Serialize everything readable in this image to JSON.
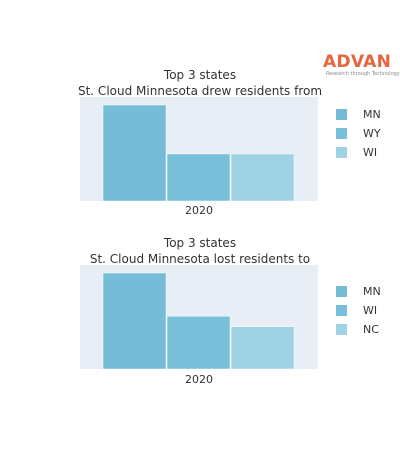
{
  "logo": {
    "word": "ADVAN",
    "tagline": "Research through Technology"
  },
  "chart_data": [
    {
      "type": "bar",
      "title": "Top 3 states",
      "subtitle": "St. Cloud Minnesota drew residents from",
      "categories": [
        "2020"
      ],
      "series": [
        {
          "name": "MN",
          "values": [
            100
          ],
          "color": "#75bcd6"
        },
        {
          "name": "WY",
          "values": [
            49
          ],
          "color": "#78bfd9"
        },
        {
          "name": "WI",
          "values": [
            49
          ],
          "color": "#9ed2e4"
        }
      ],
      "ylim": [
        0,
        100
      ],
      "xlabel": "",
      "ylabel": "",
      "grid": false,
      "legend_position": "right",
      "plot_background": "#e8eef6"
    },
    {
      "type": "bar",
      "title": "Top 3 states",
      "subtitle": "St. Cloud Minnesota lost residents to",
      "categories": [
        "2020"
      ],
      "series": [
        {
          "name": "MN",
          "values": [
            100
          ],
          "color": "#75bcd6"
        },
        {
          "name": "WI",
          "values": [
            55
          ],
          "color": "#78bfd9"
        },
        {
          "name": "NC",
          "values": [
            44
          ],
          "color": "#9ed2e4"
        }
      ],
      "ylim": [
        0,
        100
      ],
      "xlabel": "",
      "ylabel": "",
      "grid": false,
      "legend_position": "right",
      "plot_background": "#e8eef6"
    }
  ]
}
